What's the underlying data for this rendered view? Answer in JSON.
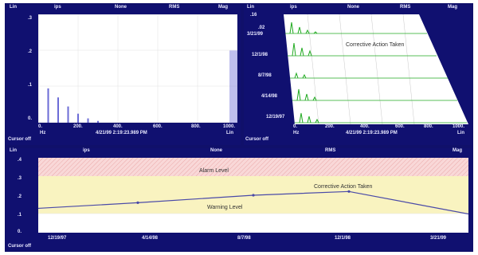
{
  "panes": {
    "spectrum": {
      "header": {
        "lin": "Lin",
        "ips": "ips",
        "none": "None",
        "rms": "RMS",
        "mag": "Mag"
      },
      "y_ticks": [
        ".3",
        ".2",
        ".1",
        "0."
      ],
      "x_ticks": [
        "0.",
        "200.",
        "400.",
        "600.",
        "800.",
        "1000."
      ],
      "x_unit_left": "Hz",
      "x_unit_right": "Lin",
      "timestamp": "4/21/99 2:19:23.989 PM",
      "cursor": "Cursor off"
    },
    "waterfall": {
      "header": {
        "lin": "Lin",
        "ips": "ips",
        "none": "None",
        "rms": "RMS",
        "mag": "Mag"
      },
      "y_top": ".16",
      "y_second": ".02",
      "date_labels": [
        "3/21/99",
        "12/1/98",
        "8/7/98",
        "4/14/98",
        "12/19/97"
      ],
      "annotation": "Corrective Action Taken",
      "x_ticks": [
        "0.",
        "200.",
        "400.",
        "600.",
        "800.",
        "1000."
      ],
      "x_unit_left": "Hz",
      "x_unit_right": "Lin",
      "timestamp": "4/21/99 2:19:23.989 PM",
      "cursor": "Cursor off"
    },
    "trend": {
      "header": {
        "lin": "Lin",
        "ips": "ips",
        "none": "None",
        "rms": "RMS",
        "mag": "Mag"
      },
      "y_ticks": [
        ".4",
        ".3",
        ".2",
        ".1",
        "0."
      ],
      "x_ticks": [
        "12/19/97",
        "4/14/98",
        "8/7/98",
        "12/1/98",
        "3/21/99"
      ],
      "alarm_label": "Alarm Level",
      "warning_label": "Warning Level",
      "annotation": "Corrective Action Taken",
      "cursor": "Cursor off"
    }
  },
  "chart_data": [
    {
      "type": "bar",
      "xlim": [
        0,
        1000
      ],
      "ylim": [
        0,
        0.3
      ],
      "series": [
        {
          "values": [
            0.095,
            0.07,
            0.045,
            0.025,
            0.012,
            0.005
          ]
        }
      ],
      "x": [
        50,
        100,
        150,
        200,
        250,
        300
      ],
      "highlight_band": {
        "x_from": 960,
        "x_to": 1000,
        "y_top": 0.2
      }
    },
    {
      "type": "line",
      "x": [
        "12/19/97",
        "4/14/98",
        "8/7/98",
        "12/1/98",
        "3/21/99"
      ],
      "series": [
        {
          "values": [
            0.13,
            0.16,
            0.2,
            0.22,
            0.1
          ]
        }
      ],
      "ylim": [
        0,
        0.4
      ],
      "alarm_level": 0.3,
      "warning_level": 0.2
    }
  ],
  "colors": {
    "frame": "#10106a",
    "plot_bg": "#ffffff",
    "axis_text": "#e8e8ff",
    "spectral_bars": "#6b6bd6",
    "waterfall_lines": "#22aa22",
    "trend_line": "#4a4aa8",
    "alarm_band": "#f6c9c9",
    "warning_band": "#f9f3c0"
  }
}
